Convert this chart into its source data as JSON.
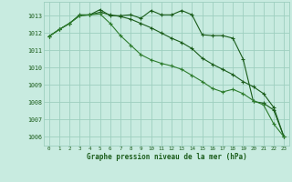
{
  "title": "Graphe pression niveau de la mer (hPa)",
  "background_color": "#c8ebe0",
  "grid_color": "#9ecfbf",
  "line_color1": "#1a5c1a",
  "line_color2": "#1a5c1a",
  "line_color3": "#2e7d2e",
  "xlim": [
    -0.5,
    23.5
  ],
  "ylim": [
    1005.5,
    1013.8
  ],
  "xticks": [
    0,
    1,
    2,
    3,
    4,
    5,
    6,
    7,
    8,
    9,
    10,
    11,
    12,
    13,
    14,
    15,
    16,
    17,
    18,
    19,
    20,
    21,
    22,
    23
  ],
  "yticks": [
    1006,
    1007,
    1008,
    1009,
    1010,
    1011,
    1012,
    1013
  ],
  "series1_x": [
    0,
    1,
    2,
    3,
    4,
    5,
    6,
    7,
    8,
    9,
    10,
    11,
    12,
    13,
    14,
    15,
    16,
    17,
    18,
    19,
    20,
    21,
    22,
    23
  ],
  "series1_y": [
    1011.8,
    1012.2,
    1012.55,
    1013.05,
    1013.05,
    1013.35,
    1013.0,
    1013.0,
    1013.05,
    1012.85,
    1013.3,
    1013.05,
    1013.05,
    1013.3,
    1013.05,
    1011.9,
    1011.85,
    1011.85,
    1011.7,
    1010.5,
    1008.05,
    1007.95,
    1007.55,
    1006.0
  ],
  "series2_x": [
    0,
    1,
    2,
    3,
    4,
    5,
    6,
    7,
    8,
    9,
    10,
    11,
    12,
    13,
    14,
    15,
    16,
    17,
    18,
    19,
    20,
    21,
    22,
    23
  ],
  "series2_y": [
    1011.8,
    1012.2,
    1012.55,
    1013.0,
    1013.05,
    1013.2,
    1013.05,
    1012.95,
    1012.8,
    1012.55,
    1012.3,
    1012.0,
    1011.7,
    1011.45,
    1011.1,
    1010.55,
    1010.2,
    1009.9,
    1009.6,
    1009.2,
    1008.9,
    1008.5,
    1007.7,
    1006.0
  ],
  "series3_x": [
    0,
    1,
    2,
    3,
    4,
    5,
    6,
    7,
    8,
    9,
    10,
    11,
    12,
    13,
    14,
    15,
    16,
    17,
    18,
    19,
    20,
    21,
    22,
    23
  ],
  "series3_y": [
    1011.8,
    1012.2,
    1012.55,
    1013.0,
    1013.05,
    1013.1,
    1012.55,
    1011.85,
    1011.3,
    1010.75,
    1010.45,
    1010.25,
    1010.1,
    1009.9,
    1009.55,
    1009.2,
    1008.8,
    1008.6,
    1008.75,
    1008.5,
    1008.1,
    1007.85,
    1006.75,
    1006.0
  ]
}
